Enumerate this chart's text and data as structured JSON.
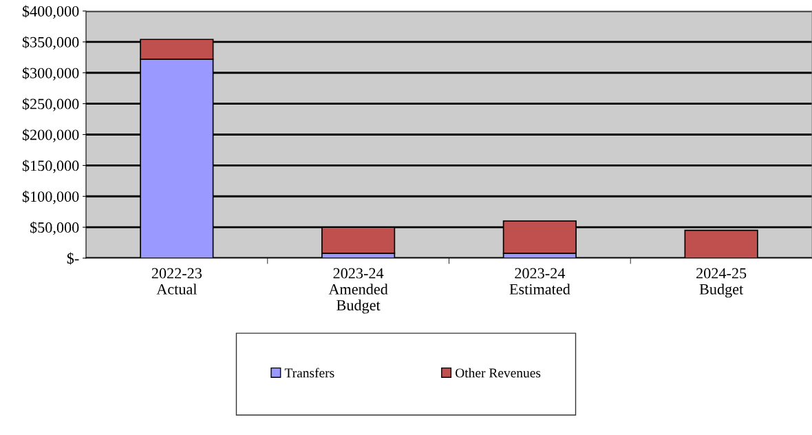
{
  "chart_data": {
    "type": "bar",
    "stacked": true,
    "categories": [
      "2022-23\nActual",
      "2023-24\nAmended\nBudget",
      "2023-24\nEstimated",
      "2024-25\nBudget"
    ],
    "series": [
      {
        "name": "Transfers",
        "color": "#9999ff",
        "values": [
          322000,
          8000,
          8000,
          0
        ]
      },
      {
        "name": "Other Revenues",
        "color": "#c0504d",
        "values": [
          32000,
          42000,
          52000,
          45000
        ]
      }
    ],
    "ylim": [
      0,
      400000
    ],
    "yticks": [
      {
        "value": 0,
        "label": "$-"
      },
      {
        "value": 50000,
        "label": "$50,000"
      },
      {
        "value": 100000,
        "label": "$100,000"
      },
      {
        "value": 150000,
        "label": "$150,000"
      },
      {
        "value": 200000,
        "label": "$200,000"
      },
      {
        "value": 250000,
        "label": "$250,000"
      },
      {
        "value": 300000,
        "label": "$300,000"
      },
      {
        "value": 350000,
        "label": "$350,000"
      },
      {
        "value": 400000,
        "label": "$400,000"
      }
    ],
    "grid": "y",
    "legend": "bottom"
  }
}
